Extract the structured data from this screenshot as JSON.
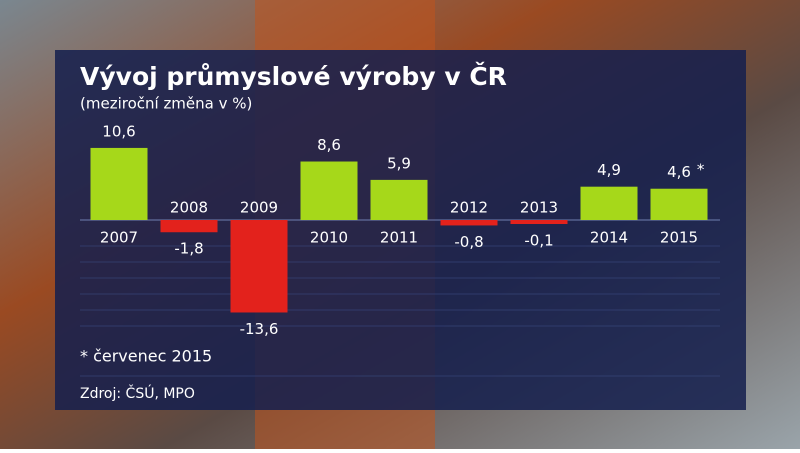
{
  "chart_data": {
    "type": "bar",
    "title": "Vývoj průmyslové výroby v ČR",
    "subtitle": "(meziroční změna v %)",
    "categories": [
      "2007",
      "2008",
      "2009",
      "2010",
      "2011",
      "2012",
      "2013",
      "2014",
      "2015"
    ],
    "values": [
      10.6,
      -1.8,
      -13.6,
      8.6,
      5.9,
      -0.8,
      -0.1,
      4.9,
      4.6
    ],
    "value_labels": [
      "10,6",
      "-1,8",
      "-13,6",
      "8,6",
      "5,9",
      "-0,8",
      "-0,1",
      "4,9",
      "4,6"
    ],
    "note_marker": "*",
    "footnote": "* červenec 2015",
    "source": "Zdroj: ČSÚ, MPO",
    "positive_color": "#a6d81a",
    "negative_color": "#e3221c"
  }
}
